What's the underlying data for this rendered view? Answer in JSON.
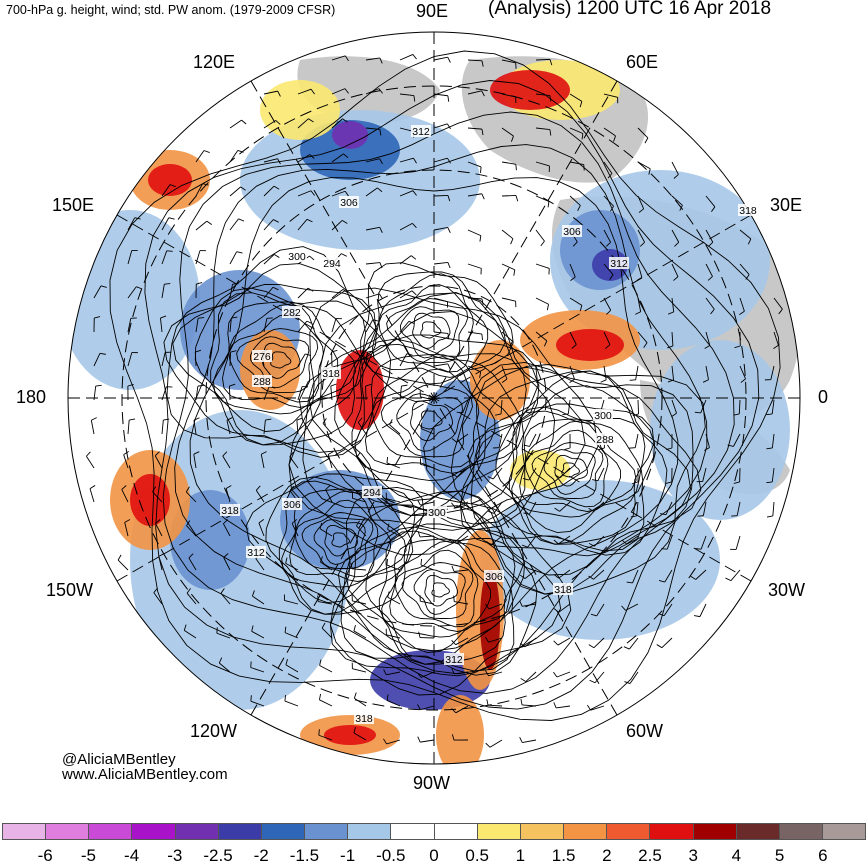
{
  "title": {
    "left": "700-hPa g. height, wind; std. PW anom. (1979-2009 CFSR)",
    "right": "(Analysis) 1200 UTC 16 Apr 2018"
  },
  "longitude_labels": {
    "top": "90E",
    "upper_left": "120E",
    "upper_right": "60E",
    "left_upper": "150E",
    "right_upper": "30E",
    "left": "180",
    "right": "0",
    "left_lower": "150W",
    "right_lower": "30W",
    "lower_left": "120W",
    "lower_right": "60W",
    "bottom": "90W"
  },
  "contour_labels": [
    "312",
    "306",
    "306",
    "312",
    "318",
    "300",
    "294",
    "282",
    "276",
    "288",
    "318",
    "300",
    "288",
    "294",
    "300",
    "318",
    "306",
    "312",
    "306",
    "318",
    "312",
    "318"
  ],
  "credits": {
    "handle": "@AliciaMBentley",
    "website": "www.AliciaMBentley.com"
  },
  "colorbar": {
    "colors": [
      "#e8b4e8",
      "#e07ee0",
      "#c94ad6",
      "#a812c8",
      "#7030b0",
      "#3c3ca8",
      "#2f66b8",
      "#6a92d0",
      "#a6c8e8",
      "#ffffff",
      "#ffffff",
      "#fbe870",
      "#f5c260",
      "#f29444",
      "#f05a30",
      "#e01010",
      "#a00000",
      "#6a2a2a",
      "#786464",
      "#a89a98"
    ],
    "tick_labels": [
      "-6",
      "-5",
      "-4",
      "-3",
      "-2.5",
      "-2",
      "-1.5",
      "-1",
      "-0.5",
      "0",
      "0.5",
      "1",
      "1.5",
      "2",
      "2.5",
      "3",
      "4",
      "5",
      "6"
    ]
  },
  "map": {
    "land_color": "#c8c8c8",
    "blob_colors": {
      "dark_blue": "#3c3ca8",
      "blue": "#2f66b8",
      "mid_blue": "#6a92d0",
      "light_blue": "#a6c8e8",
      "yellow": "#fbe870",
      "orange": "#f29444",
      "red": "#e01010",
      "dark_red": "#a00000",
      "purple": "#7030b0"
    }
  }
}
